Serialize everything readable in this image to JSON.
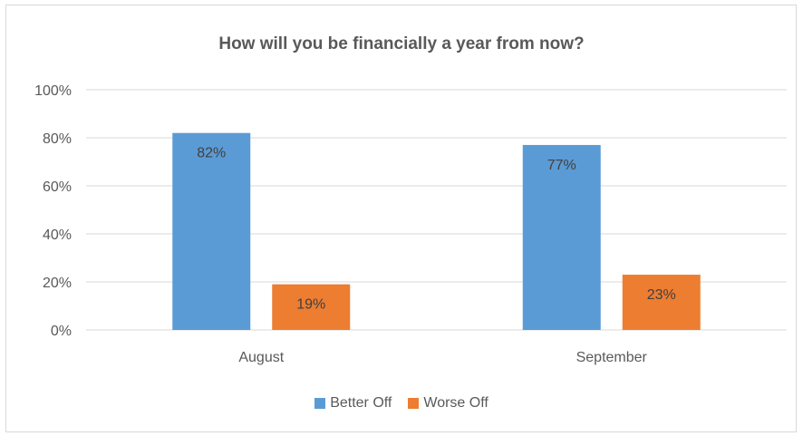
{
  "chart_data": {
    "type": "bar",
    "title": "How will you be financially a year from now?",
    "categories": [
      "August",
      "September"
    ],
    "series": [
      {
        "name": "Better Off",
        "values": [
          82,
          77
        ],
        "labels": [
          "82%",
          "77%"
        ],
        "color": "#5b9bd5"
      },
      {
        "name": "Worse Off",
        "values": [
          19,
          23
        ],
        "labels": [
          "19%",
          "23%"
        ],
        "color": "#ed7d31"
      }
    ],
    "ylim": [
      0,
      100
    ],
    "yticks": [
      "0%",
      "20%",
      "40%",
      "60%",
      "80%",
      "100%"
    ],
    "grid": true,
    "legend_position": "bottom"
  }
}
